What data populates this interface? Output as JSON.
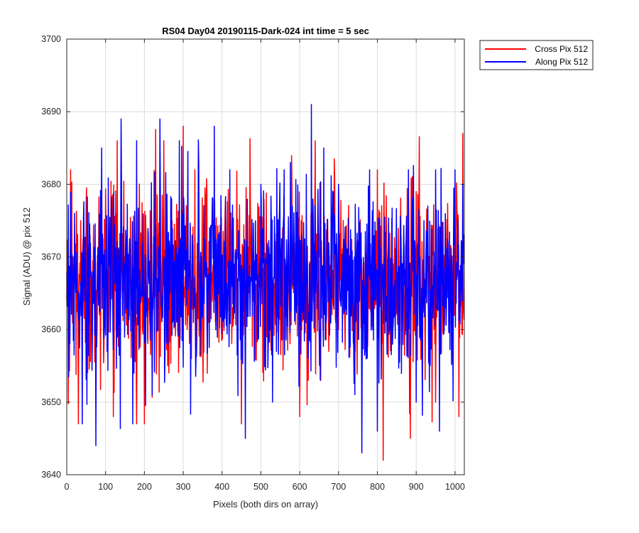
{
  "chart_data": {
    "type": "line",
    "title": "RS04 Day04 20190115-Dark-024 int time = 5 sec",
    "xlabel": "Pixels (both dirs on array)",
    "ylabel": "Signal (ADU) @ pix 512",
    "xlim": [
      0,
      1024
    ],
    "ylim": [
      3640,
      3700
    ],
    "x_ticks": [
      0,
      100,
      200,
      300,
      400,
      500,
      600,
      700,
      800,
      900,
      1000
    ],
    "y_ticks": [
      3640,
      3650,
      3660,
      3670,
      3680,
      3690,
      3700
    ],
    "grid": true,
    "legend_position": "outside-top-right",
    "n_points": 1024,
    "series_mean": 3667,
    "series_range": [
      3642,
      3691
    ],
    "series": [
      {
        "name": "Cross Pix 512",
        "color": "#ff0000",
        "sample_x": [
          0,
          10,
          30,
          60,
          75,
          90,
          120,
          130,
          150,
          180,
          190,
          200,
          250,
          260,
          300,
          310,
          330,
          400,
          450,
          500,
          530,
          580,
          600,
          640,
          650,
          660,
          690,
          700,
          750,
          800,
          815,
          850,
          885,
          900,
          950,
          1010,
          1020
        ],
        "sample_y": [
          3664,
          3682,
          3647,
          3673,
          3651,
          3680,
          3648,
          3686,
          3670,
          3647,
          3660,
          3647,
          3686,
          3655,
          3688,
          3660,
          3682,
          3663,
          3647,
          3672,
          3660,
          3680,
          3648,
          3686,
          3670,
          3660,
          3681,
          3660,
          3659,
          3682,
          3642,
          3667,
          3645,
          3679,
          3650,
          3648,
          3687
        ]
      },
      {
        "name": "Along Pix 512",
        "color": "#0000ff",
        "sample_x": [
          0,
          20,
          40,
          75,
          90,
          140,
          170,
          180,
          220,
          240,
          260,
          290,
          340,
          380,
          420,
          460,
          500,
          530,
          560,
          630,
          650,
          700,
          760,
          780,
          800,
          840,
          880,
          900,
          950,
          960,
          1000,
          1020
        ],
        "sample_y": [
          3668,
          3676,
          3647,
          3644,
          3685,
          3689,
          3647,
          3686,
          3651,
          3689,
          3660,
          3686,
          3683,
          3688,
          3682,
          3645,
          3680,
          3650,
          3682,
          3691,
          3660,
          3680,
          3643,
          3682,
          3646,
          3660,
          3682,
          3650,
          3682,
          3646,
          3682,
          3680
        ]
      }
    ]
  }
}
